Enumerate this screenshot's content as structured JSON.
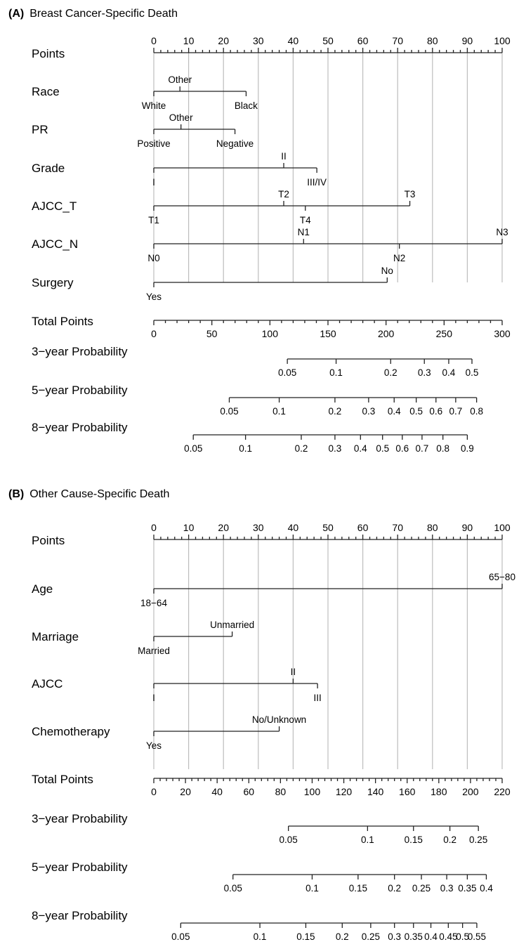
{
  "chart_data": [
    {
      "type": "nomogram",
      "title": "Breast Cancer-Specific Death",
      "panel_letter": "(A)",
      "points_scale": {
        "label": "Points",
        "min": 0,
        "max": 100,
        "major": [
          0,
          10,
          20,
          30,
          40,
          50,
          60,
          70,
          80,
          90,
          100
        ],
        "minor_step": 2
      },
      "variables": [
        {
          "name": "Race",
          "min": 0,
          "max": 26.5,
          "levels": [
            {
              "label": "White",
              "points": 0,
              "side": "below"
            },
            {
              "label": "Other",
              "points": 7.5,
              "side": "above"
            },
            {
              "label": "Black",
              "points": 26.5,
              "side": "below"
            }
          ]
        },
        {
          "name": "PR",
          "min": 0,
          "max": 23.3,
          "levels": [
            {
              "label": "Positive",
              "points": 0,
              "side": "below"
            },
            {
              "label": "Other",
              "points": 7.8,
              "side": "above"
            },
            {
              "label": "Negative",
              "points": 23.3,
              "side": "below"
            }
          ]
        },
        {
          "name": "Grade",
          "min": 0,
          "max": 46.8,
          "levels": [
            {
              "label": "I",
              "points": 0,
              "side": "below"
            },
            {
              "label": "II",
              "points": 37.3,
              "side": "above"
            },
            {
              "label": "III/IV",
              "points": 46.8,
              "side": "below"
            }
          ]
        },
        {
          "name": "AJCC_T",
          "min": 0,
          "max": 73.5,
          "levels": [
            {
              "label": "T1",
              "points": 0,
              "side": "below"
            },
            {
              "label": "T2",
              "points": 37.3,
              "side": "above"
            },
            {
              "label": "T4",
              "points": 43.5,
              "side": "below"
            },
            {
              "label": "T3",
              "points": 73.5,
              "side": "above"
            }
          ]
        },
        {
          "name": "AJCC_N",
          "min": 0,
          "max": 100,
          "levels": [
            {
              "label": "N0",
              "points": 0,
              "side": "below"
            },
            {
              "label": "N1",
              "points": 43,
              "side": "above"
            },
            {
              "label": "N2",
              "points": 70.5,
              "side": "below"
            },
            {
              "label": "N3",
              "points": 100,
              "side": "above"
            }
          ]
        },
        {
          "name": "Surgery",
          "min": 0,
          "max": 67,
          "levels": [
            {
              "label": "Yes",
              "points": 0,
              "side": "below"
            },
            {
              "label": "No",
              "points": 67,
              "side": "above"
            }
          ]
        }
      ],
      "total_points": {
        "label": "Total Points",
        "min": 0,
        "max": 300,
        "major": [
          0,
          50,
          100,
          150,
          200,
          250,
          300
        ],
        "minor_step": 10
      },
      "probabilities": [
        {
          "label": "3−year Probability",
          "ticks": [
            {
              "label": "0.05",
              "total": 115
            },
            {
              "label": "0.1",
              "total": 157
            },
            {
              "label": "0.2",
              "total": 204
            },
            {
              "label": "0.3",
              "total": 233
            },
            {
              "label": "0.4",
              "total": 254
            },
            {
              "label": "0.5",
              "total": 274
            }
          ]
        },
        {
          "label": "5−year Probability",
          "ticks": [
            {
              "label": "0.05",
              "total": 65
            },
            {
              "label": "0.1",
              "total": 108
            },
            {
              "label": "0.2",
              "total": 156
            },
            {
              "label": "0.3",
              "total": 185
            },
            {
              "label": "0.4",
              "total": 207
            },
            {
              "label": "0.5",
              "total": 226
            },
            {
              "label": "0.6",
              "total": 243
            },
            {
              "label": "0.7",
              "total": 260
            },
            {
              "label": "0.8",
              "total": 278
            }
          ]
        },
        {
          "label": "8−year Probability",
          "ticks": [
            {
              "label": "0.05",
              "total": 34
            },
            {
              "label": "0.1",
              "total": 79
            },
            {
              "label": "0.2",
              "total": 127
            },
            {
              "label": "0.3",
              "total": 156
            },
            {
              "label": "0.4",
              "total": 178
            },
            {
              "label": "0.5",
              "total": 197
            },
            {
              "label": "0.6",
              "total": 214
            },
            {
              "label": "0.7",
              "total": 231
            },
            {
              "label": "0.8",
              "total": 249
            },
            {
              "label": "0.9",
              "total": 270
            }
          ]
        }
      ]
    },
    {
      "type": "nomogram",
      "title": "Other Cause-Specific Death",
      "panel_letter": "(B)",
      "points_scale": {
        "label": "Points",
        "min": 0,
        "max": 100,
        "major": [
          0,
          10,
          20,
          30,
          40,
          50,
          60,
          70,
          80,
          90,
          100
        ],
        "minor_step": 2
      },
      "variables": [
        {
          "name": "Age",
          "min": 0,
          "max": 100,
          "levels": [
            {
              "label": "18−64",
              "points": 0,
              "side": "below"
            },
            {
              "label": "65−80",
              "points": 100,
              "side": "above"
            }
          ]
        },
        {
          "name": "Marriage",
          "min": 0,
          "max": 22.5,
          "levels": [
            {
              "label": "Married",
              "points": 0,
              "side": "below"
            },
            {
              "label": "Unmarried",
              "points": 22.5,
              "side": "above"
            }
          ]
        },
        {
          "name": "AJCC",
          "min": 0,
          "max": 47,
          "levels": [
            {
              "label": "I",
              "points": 0,
              "side": "below"
            },
            {
              "label": "II",
              "points": 40,
              "side": "above"
            },
            {
              "label": "III",
              "points": 47,
              "side": "below"
            }
          ]
        },
        {
          "name": "Chemotherapy",
          "min": 0,
          "max": 36,
          "levels": [
            {
              "label": "Yes",
              "points": 0,
              "side": "below"
            },
            {
              "label": "No/Unknown",
              "points": 36,
              "side": "above"
            }
          ]
        }
      ],
      "total_points": {
        "label": "Total Points",
        "min": 0,
        "max": 220,
        "major": [
          0,
          20,
          40,
          60,
          80,
          100,
          120,
          140,
          160,
          180,
          200,
          220
        ],
        "minor_step": 4
      },
      "probabilities": [
        {
          "label": "3−year Probability",
          "ticks": [
            {
              "label": "0.05",
              "total": 85
            },
            {
              "label": "0.1",
              "total": 135
            },
            {
              "label": "0.15",
              "total": 164
            },
            {
              "label": "0.2",
              "total": 187
            },
            {
              "label": "0.25",
              "total": 205
            }
          ]
        },
        {
          "label": "5−year Probability",
          "ticks": [
            {
              "label": "0.05",
              "total": 50
            },
            {
              "label": "0.1",
              "total": 100
            },
            {
              "label": "0.15",
              "total": 129
            },
            {
              "label": "0.2",
              "total": 152
            },
            {
              "label": "0.25",
              "total": 169
            },
            {
              "label": "0.3",
              "total": 185
            },
            {
              "label": "0.35",
              "total": 198
            },
            {
              "label": "0.4",
              "total": 210
            }
          ]
        },
        {
          "label": "8−year Probability",
          "ticks": [
            {
              "label": "0.05",
              "total": 17
            },
            {
              "label": "0.1",
              "total": 67
            },
            {
              "label": "0.15",
              "total": 96
            },
            {
              "label": "0.2",
              "total": 119
            },
            {
              "label": "0.25",
              "total": 137
            },
            {
              "label": "0.3",
              "total": 152
            },
            {
              "label": "0.35",
              "total": 164
            },
            {
              "label": "0.4",
              "total": 175
            },
            {
              "label": "0.45",
              "total": 186
            },
            {
              "label": "0.5",
              "total": 195
            },
            {
              "label": "0.55",
              "total": 204
            }
          ]
        }
      ]
    }
  ]
}
